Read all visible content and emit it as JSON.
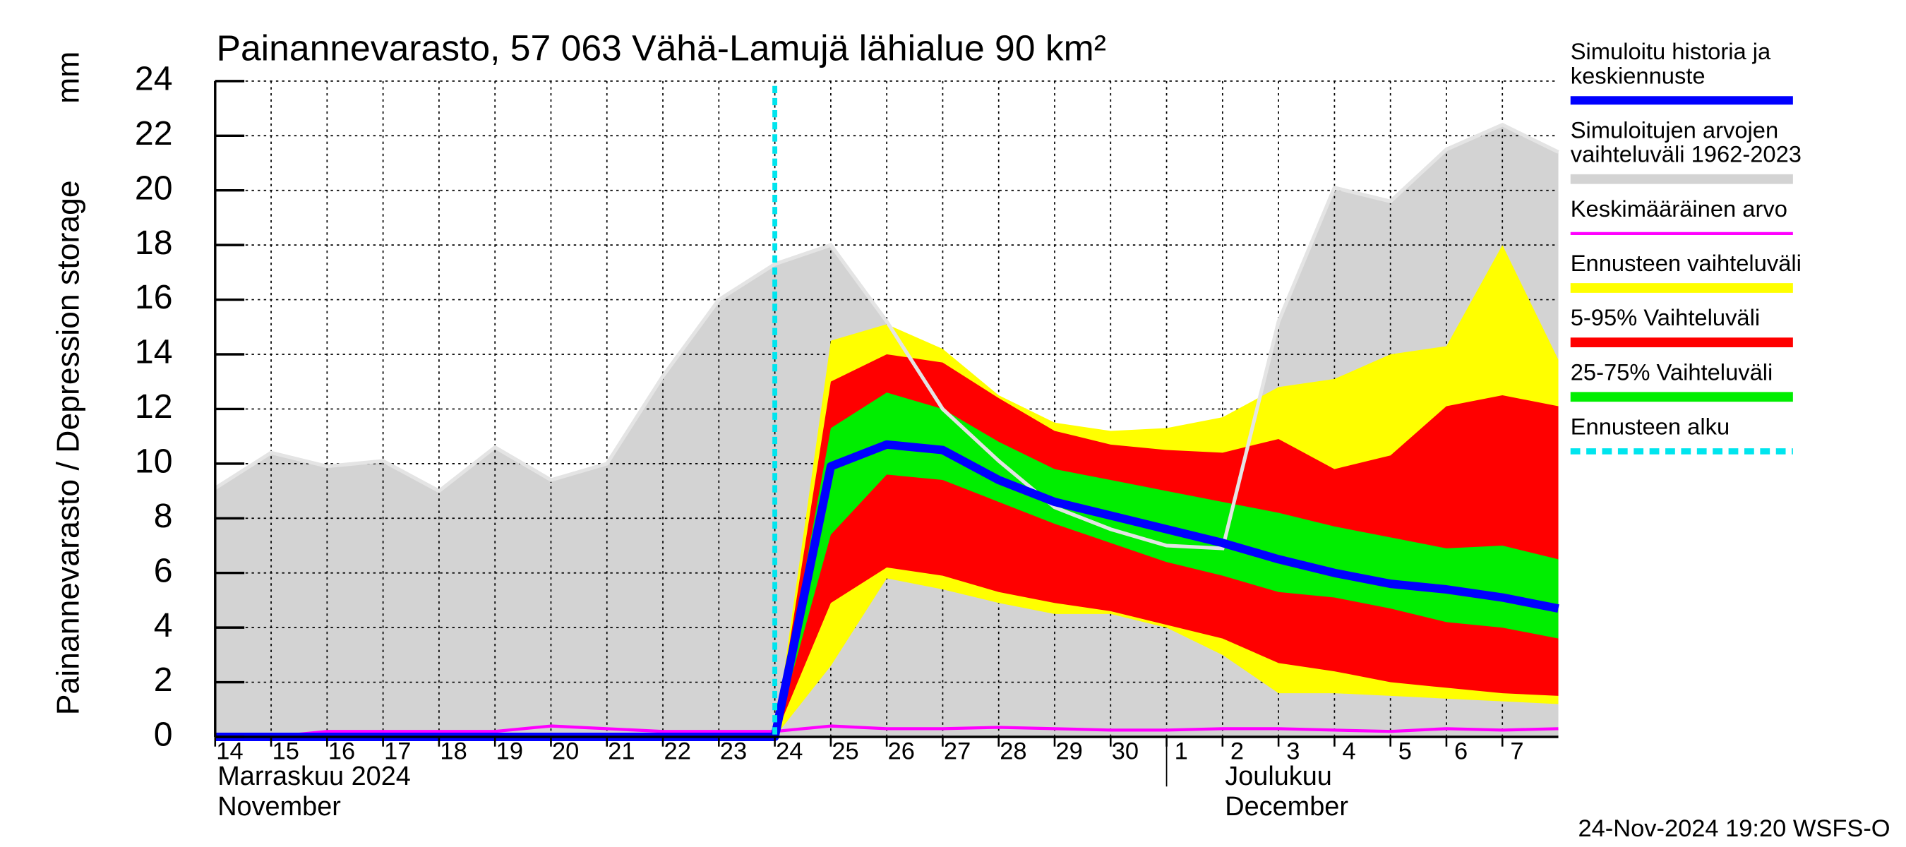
{
  "chart_data": {
    "type": "line",
    "title": "Painannevarasto, 57 063 Vähä-Lamujä lähialue 90 km²",
    "y_label": "Painannevarasto / Depression storage",
    "y_unit": "mm",
    "timestamp": "24-Nov-2024 19:20 WSFS-O",
    "x": [
      "2024-11-14",
      "2024-11-15",
      "2024-11-16",
      "2024-11-17",
      "2024-11-18",
      "2024-11-19",
      "2024-11-20",
      "2024-11-21",
      "2024-11-22",
      "2024-11-23",
      "2024-11-24",
      "2024-11-25",
      "2024-11-26",
      "2024-11-27",
      "2024-11-28",
      "2024-11-29",
      "2024-11-30",
      "2024-12-01",
      "2024-12-02",
      "2024-12-03",
      "2024-12-04",
      "2024-12-05",
      "2024-12-06",
      "2024-12-07",
      "2024-12-08"
    ],
    "xlim": [
      "2024-11-14",
      "2024-12-08"
    ],
    "xticks": [
      {
        "value": "2024-11-14",
        "label": "14"
      },
      {
        "value": "2024-11-15",
        "label": "15"
      },
      {
        "value": "2024-11-16",
        "label": "16"
      },
      {
        "value": "2024-11-17",
        "label": "17"
      },
      {
        "value": "2024-11-18",
        "label": "18"
      },
      {
        "value": "2024-11-19",
        "label": "19"
      },
      {
        "value": "2024-11-20",
        "label": "20"
      },
      {
        "value": "2024-11-21",
        "label": "21"
      },
      {
        "value": "2024-11-22",
        "label": "22"
      },
      {
        "value": "2024-11-23",
        "label": "23"
      },
      {
        "value": "2024-11-24",
        "label": "24"
      },
      {
        "value": "2024-11-25",
        "label": "25"
      },
      {
        "value": "2024-11-26",
        "label": "26"
      },
      {
        "value": "2024-11-27",
        "label": "27"
      },
      {
        "value": "2024-11-28",
        "label": "28"
      },
      {
        "value": "2024-11-29",
        "label": "29"
      },
      {
        "value": "2024-11-30",
        "label": "30"
      },
      {
        "value": "2024-12-01",
        "label": "1"
      },
      {
        "value": "2024-12-02",
        "label": "2"
      },
      {
        "value": "2024-12-03",
        "label": "3"
      },
      {
        "value": "2024-12-04",
        "label": "4"
      },
      {
        "value": "2024-12-05",
        "label": "5"
      },
      {
        "value": "2024-12-06",
        "label": "6"
      },
      {
        "value": "2024-12-07",
        "label": "7"
      }
    ],
    "month_labels": [
      {
        "at": "2024-11-14",
        "lines": [
          "Marraskuu 2024",
          "November"
        ]
      },
      {
        "at": "2024-12-02",
        "lines": [
          "Joulukuu",
          "December"
        ]
      }
    ],
    "month_separator": "2024-12-01",
    "ylim": [
      0,
      24
    ],
    "yticks": [
      0,
      2,
      4,
      6,
      8,
      10,
      12,
      14,
      16,
      18,
      20,
      22,
      24
    ],
    "grid": true,
    "legend": "right",
    "series": [
      {
        "name": [
          "Simuloitu historia ja",
          "keskiennuste"
        ],
        "color": "#0000ff",
        "kind": "line",
        "values": [
          0,
          0,
          0,
          0,
          0,
          0,
          0,
          0,
          0,
          0,
          0,
          9.9,
          10.7,
          10.5,
          9.4,
          8.6,
          8.1,
          7.6,
          7.1,
          6.5,
          6.0,
          5.6,
          5.4,
          5.1,
          4.7
        ]
      },
      {
        "name": [
          "Simuloitujen arvojen",
          "vaihteluväli 1962-2023"
        ],
        "color": "#d3d3d3",
        "kind": "band",
        "lower": [
          0,
          0,
          0,
          0,
          0,
          0,
          0,
          0,
          0,
          0,
          0,
          0,
          0,
          0,
          0,
          0,
          0,
          0,
          0,
          0,
          0,
          0,
          0,
          0,
          0
        ],
        "upper": [
          9.1,
          10.4,
          9.9,
          10.1,
          9.0,
          10.6,
          9.4,
          10.0,
          13.2,
          16.0,
          17.3,
          18.0,
          15.2,
          12.0,
          10.1,
          8.4,
          7.6,
          7.0,
          6.9,
          15.2,
          20.1,
          19.6,
          21.5,
          22.4,
          21.4
        ]
      },
      {
        "name": [
          "Keskimääräinen arvo"
        ],
        "color": "#ff00ff",
        "kind": "line",
        "values": [
          0,
          0,
          0.2,
          0.2,
          0.2,
          0.2,
          0.4,
          0.3,
          0.2,
          0.2,
          0.2,
          0.4,
          0.3,
          0.3,
          0.35,
          0.3,
          0.25,
          0.25,
          0.3,
          0.3,
          0.25,
          0.2,
          0.3,
          0.25,
          0.3
        ]
      },
      {
        "name": [
          "Ennusteen vaihteluväli"
        ],
        "color": "#ffff00",
        "kind": "band",
        "lower": [
          null,
          null,
          null,
          null,
          null,
          null,
          null,
          null,
          null,
          null,
          0,
          2.6,
          5.8,
          5.4,
          4.9,
          4.5,
          4.5,
          4.0,
          3.0,
          1.6,
          1.6,
          1.5,
          1.4,
          1.3,
          1.2
        ],
        "upper": [
          null,
          null,
          null,
          null,
          null,
          null,
          null,
          null,
          null,
          null,
          0,
          14.5,
          15.1,
          14.2,
          12.5,
          11.5,
          11.2,
          11.3,
          11.7,
          12.8,
          13.1,
          14.0,
          14.3,
          18.0,
          13.8
        ]
      },
      {
        "name": [
          "5-95% Vaihteluväli"
        ],
        "color": "#ff0000",
        "kind": "band",
        "lower": [
          null,
          null,
          null,
          null,
          null,
          null,
          null,
          null,
          null,
          null,
          0,
          4.9,
          6.2,
          5.9,
          5.3,
          4.9,
          4.6,
          4.1,
          3.6,
          2.7,
          2.4,
          2.0,
          1.8,
          1.6,
          1.5
        ],
        "upper": [
          null,
          null,
          null,
          null,
          null,
          null,
          null,
          null,
          null,
          null,
          0,
          13.0,
          14.0,
          13.7,
          12.4,
          11.2,
          10.7,
          10.5,
          10.4,
          10.9,
          9.8,
          10.3,
          12.1,
          12.5,
          12.1
        ]
      },
      {
        "name": [
          "25-75% Vaihteluväli"
        ],
        "color": "#00ee00",
        "kind": "band",
        "lower": [
          null,
          null,
          null,
          null,
          null,
          null,
          null,
          null,
          null,
          null,
          0,
          7.4,
          9.6,
          9.4,
          8.6,
          7.8,
          7.1,
          6.4,
          5.9,
          5.3,
          5.1,
          4.7,
          4.2,
          4.0,
          3.6
        ],
        "upper": [
          null,
          null,
          null,
          null,
          null,
          null,
          null,
          null,
          null,
          null,
          0,
          11.3,
          12.6,
          12.0,
          10.8,
          9.8,
          9.4,
          9.0,
          8.6,
          8.2,
          7.7,
          7.3,
          6.9,
          7.0,
          6.5
        ]
      },
      {
        "name": [
          "Ennusteen alku"
        ],
        "color": "#00e5ee",
        "kind": "vline",
        "at": "2024-11-24"
      }
    ]
  }
}
